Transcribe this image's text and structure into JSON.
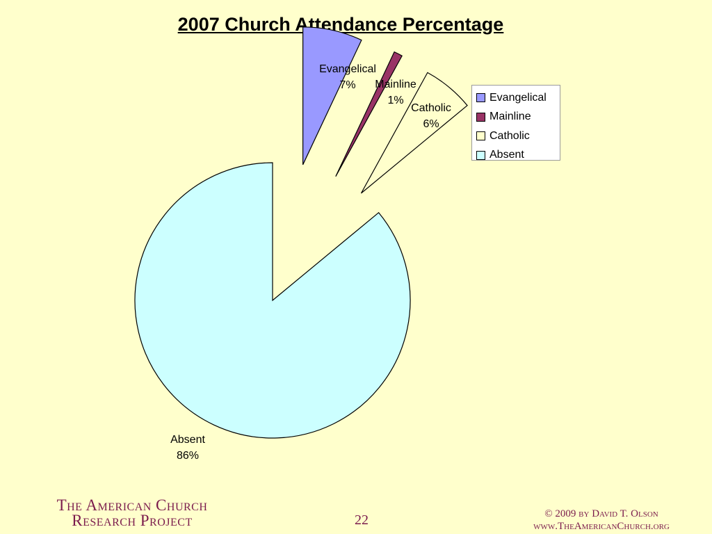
{
  "chart_data": {
    "type": "pie",
    "title": "2007 Church Attendance Percentage",
    "categories": [
      "Evangelical",
      "Mainline",
      "Catholic",
      "Absent"
    ],
    "values": [
      7,
      1,
      6,
      86
    ],
    "data_labels": [
      "7%",
      "1%",
      "6%",
      "86%"
    ],
    "colors": [
      "#9999ff",
      "#993366",
      "#ffffcc",
      "#ccffff"
    ],
    "exploded": true,
    "legend": {
      "placement": "right",
      "entries": [
        "Evangelical",
        "Mainline",
        "Catholic",
        "Absent"
      ]
    }
  },
  "footer": {
    "org_line1": "The American Church",
    "org_line2": "Research Project",
    "page_number": "22",
    "copyright": "© 2009 by David T. Olson",
    "website": "www.TheAmericanChurch.org"
  }
}
